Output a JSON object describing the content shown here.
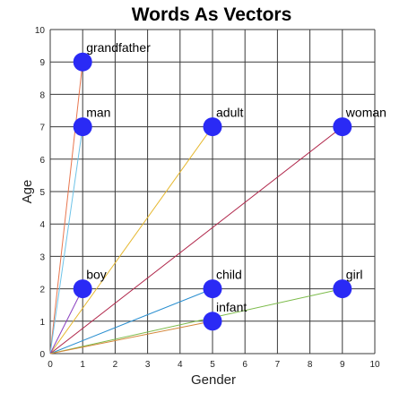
{
  "chart_data": {
    "type": "scatter",
    "title": "Words As Vectors",
    "xlabel": "Gender",
    "ylabel": "Age",
    "xlim": [
      0,
      10
    ],
    "ylim": [
      0,
      10
    ],
    "xticks": [
      "0",
      "1",
      "2",
      "3",
      "4",
      "5",
      "6",
      "7",
      "8",
      "9",
      "10"
    ],
    "yticks": [
      "0",
      "1",
      "2",
      "3",
      "4",
      "5",
      "6",
      "7",
      "8",
      "9",
      "10"
    ],
    "grid": true,
    "marker_color": "#2a2af5",
    "points": [
      {
        "label": "grandfather",
        "x": 1,
        "y": 9,
        "arrow_color": "#e8764f"
      },
      {
        "label": "man",
        "x": 1,
        "y": 7,
        "arrow_color": "#6ec3e8"
      },
      {
        "label": "adult",
        "x": 5,
        "y": 7,
        "arrow_color": "#e6b830"
      },
      {
        "label": "woman",
        "x": 9,
        "y": 7,
        "arrow_color": "#b0264a"
      },
      {
        "label": "boy",
        "x": 1,
        "y": 2,
        "arrow_color": "#8a3fbf"
      },
      {
        "label": "child",
        "x": 5,
        "y": 2,
        "arrow_color": "#2a8fd0"
      },
      {
        "label": "girl",
        "x": 9,
        "y": 2,
        "arrow_color": "#7cbb4a"
      },
      {
        "label": "infant",
        "x": 5,
        "y": 1,
        "arrow_color": "#d4873a"
      }
    ]
  }
}
